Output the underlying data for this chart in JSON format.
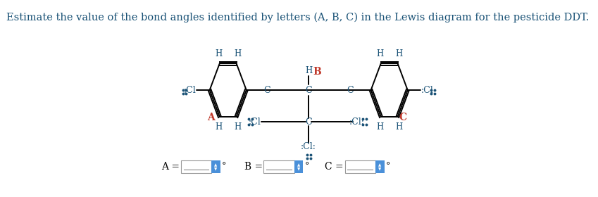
{
  "title_text": "Estimate the value of the bond angles identified by letters (A, B, C) in the Lewis diagram for the pesticide DDT.",
  "title_color": "#1a5276",
  "title_fontsize": 10.5,
  "background_color": "#ffffff",
  "label_A": "A",
  "label_B": "B",
  "label_C": "C",
  "label_color_A": "#c0392b",
  "label_color_B": "#c0392b",
  "label_color_C": "#c0392b",
  "input_box_color": "#5b9bd5",
  "atom_color": "#1a5276",
  "bond_color": "#000000",
  "lone_pair_color": "#1a5276",
  "degree_symbol": "°"
}
